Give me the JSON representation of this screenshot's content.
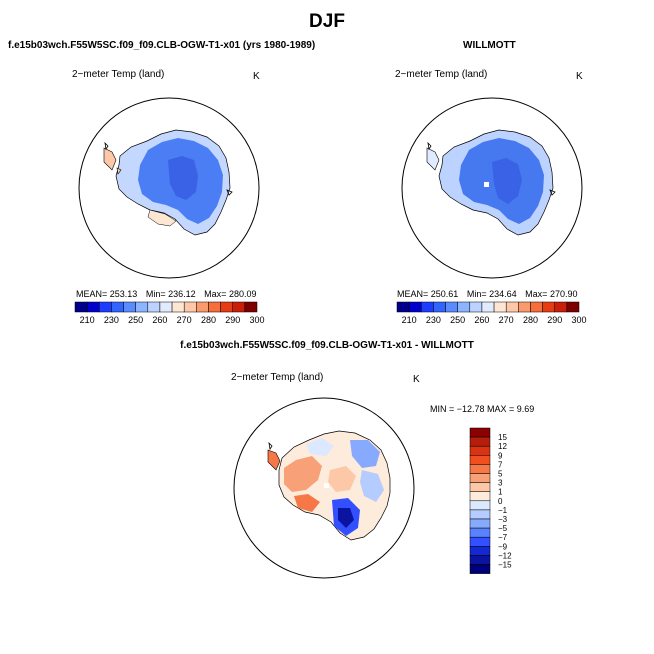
{
  "title": "DJF",
  "panels": [
    {
      "header": "f.e15b03wch.F55W5SC.f09_f09.CLB-OGW-T1-x01 (yrs 1980-1989)",
      "variable": "2−meter Temp (land)",
      "units": "K",
      "stats": {
        "mean_label": "MEAN=",
        "mean": "253.13",
        "min_label": "Min=",
        "min": "236.12",
        "max_label": "Max=",
        "max": "280.09"
      },
      "colorbar": {
        "ticks": [
          "210",
          "230",
          "250",
          "260",
          "270",
          "280",
          "290",
          "300"
        ]
      }
    },
    {
      "header": "WILLMOTT",
      "variable": "2−meter Temp (land)",
      "units": "K",
      "stats": {
        "mean_label": "MEAN=",
        "mean": "250.61",
        "min_label": "Min=",
        "min": "234.64",
        "max_label": "Max=",
        "max": "270.90"
      },
      "colorbar": {
        "ticks": [
          "210",
          "230",
          "250",
          "260",
          "270",
          "280",
          "290",
          "300"
        ]
      }
    },
    {
      "header": "f.e15b03wch.F55W5SC.f09_f09.CLB-OGW-T1-x01 - WILLMOTT",
      "variable": "2−meter Temp (land)",
      "units": "K",
      "stats_line": "MIN =  −12.78  MAX =    9.69",
      "colorbar": {
        "ticks": [
          "15",
          "12",
          "9",
          "7",
          "5",
          "3",
          "1",
          "0",
          "−1",
          "−3",
          "−5",
          "−7",
          "−9",
          "−12",
          "−15"
        ]
      }
    }
  ],
  "colors": {
    "abs_scale": [
      "#00008b",
      "#0000cd",
      "#1e3cff",
      "#3264ff",
      "#5a8cff",
      "#8cb4ff",
      "#bcd2ff",
      "#e1ebff",
      "#fde6d2",
      "#fcc8a8",
      "#fa9b6e",
      "#f56e3c",
      "#e63c14",
      "#c81e0a",
      "#7d0000"
    ],
    "diff_scale": [
      "#8b0000",
      "#b41e0a",
      "#dc3214",
      "#f0501e",
      "#f57846",
      "#f8a078",
      "#fcc8a8",
      "#fdebdc",
      "#dce8ff",
      "#b4ccff",
      "#87aaff",
      "#5a82ff",
      "#3250ff",
      "#1428d2",
      "#0a14a0",
      "#00007d"
    ],
    "ice_sheet_case": "#4b7df5",
    "ice_sheet_obs": "#4678f0",
    "coast": "#000000"
  }
}
